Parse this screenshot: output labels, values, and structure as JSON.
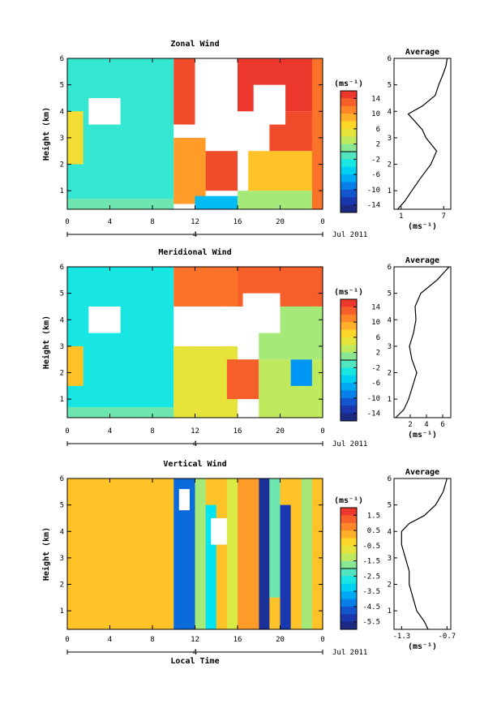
{
  "chart_data": [
    {
      "type": "heatmap",
      "title": "Zonal Wind",
      "ylabel": "Height (km)",
      "xlabel": "",
      "xlim": [
        0,
        24
      ],
      "ylim": [
        0.3,
        6
      ],
      "x_ticks": [
        "0",
        "4",
        "8",
        "12",
        "16",
        "20",
        "0"
      ],
      "y_ticks": [
        "1",
        "2",
        "3",
        "4",
        "5",
        "6"
      ],
      "date_axis": {
        "day": "4",
        "date_label": "Jul 2011"
      },
      "colorbar": {
        "unit": "(ms⁻¹)",
        "ticks": [
          "14",
          "10",
          "6",
          "2",
          "-2",
          "-6",
          "-10",
          "-14"
        ],
        "range": [
          -16,
          16
        ]
      },
      "average_profile": {
        "title": "Average",
        "xlabel": "(ms⁻¹)",
        "x_ticks": [
          "1",
          "7"
        ],
        "xlim": [
          0,
          8
        ],
        "height": [
          0.3,
          0.6,
          1.0,
          1.5,
          2.0,
          2.5,
          3.0,
          3.3,
          3.6,
          3.9,
          4.2,
          4.6,
          5.0,
          5.4,
          5.7,
          6.0
        ],
        "value": [
          0.5,
          1.5,
          2.5,
          3.8,
          5.2,
          6.0,
          4.5,
          4.0,
          3.0,
          2.0,
          4.0,
          5.8,
          6.3,
          6.9,
          7.3,
          7.5
        ]
      },
      "regions": [
        {
          "x": [
            0,
            10
          ],
          "y": [
            0.3,
            6
          ],
          "value": -2
        },
        {
          "x": [
            0,
            1.5
          ],
          "y": [
            2,
            4
          ],
          "value": 6
        },
        {
          "x": [
            0,
            10
          ],
          "y": [
            0.3,
            0.7
          ],
          "value": 0
        },
        {
          "x": [
            10,
            12
          ],
          "y": [
            3.5,
            6
          ],
          "value": 14
        },
        {
          "x": [
            10,
            13
          ],
          "y": [
            0.5,
            3
          ],
          "value": 10
        },
        {
          "x": [
            12,
            16
          ],
          "y": [
            0.3,
            0.8
          ],
          "value": -6
        },
        {
          "x": [
            13,
            16
          ],
          "y": [
            1,
            2.5
          ],
          "value": 14
        },
        {
          "x": [
            16,
            24
          ],
          "y": [
            0.3,
            1
          ],
          "value": 2
        },
        {
          "x": [
            17,
            24
          ],
          "y": [
            1,
            2.5
          ],
          "value": 8
        },
        {
          "x": [
            19,
            24
          ],
          "y": [
            2.5,
            4
          ],
          "value": 14
        },
        {
          "x": [
            16,
            24
          ],
          "y": [
            4,
            6
          ],
          "value": 15
        },
        {
          "x": [
            23,
            24
          ],
          "y": [
            0.3,
            6
          ],
          "value": 12
        }
      ],
      "missing": [
        {
          "x": [
            12,
            15
          ],
          "y": [
            3.3,
            5
          ],
          "value": null
        },
        {
          "x": [
            17.5,
            20.5
          ],
          "y": [
            3.5,
            5
          ],
          "value": null
        },
        {
          "x": [
            2,
            5
          ],
          "y": [
            3.5,
            4.5
          ],
          "value": null
        }
      ]
    },
    {
      "type": "heatmap",
      "title": "Meridional Wind",
      "ylabel": "Height (km)",
      "xlabel": "",
      "xlim": [
        0,
        24
      ],
      "ylim": [
        0.3,
        6
      ],
      "x_ticks": [
        "0",
        "4",
        "8",
        "12",
        "16",
        "20",
        "0"
      ],
      "y_ticks": [
        "1",
        "2",
        "3",
        "4",
        "5",
        "6"
      ],
      "date_axis": {
        "day": "4",
        "date_label": "Jul 2011"
      },
      "colorbar": {
        "unit": "(ms⁻¹)",
        "ticks": [
          "14",
          "10",
          "6",
          "2",
          "-2",
          "-6",
          "-10",
          "-14"
        ],
        "range": [
          -16,
          16
        ]
      },
      "average_profile": {
        "title": "Average",
        "xlabel": "(ms⁻¹)",
        "x_ticks": [
          "2",
          "4",
          "6"
        ],
        "xlim": [
          0,
          7
        ],
        "height": [
          0.3,
          0.6,
          1.0,
          1.5,
          2.0,
          2.5,
          3.0,
          3.5,
          4.0,
          4.5,
          5.0,
          5.5,
          6.0
        ],
        "value": [
          0.2,
          1.2,
          1.8,
          2.3,
          2.8,
          2.2,
          1.9,
          2.4,
          2.7,
          2.6,
          3.3,
          5.3,
          6.8
        ]
      },
      "regions": [
        {
          "x": [
            0,
            10
          ],
          "y": [
            0.3,
            6
          ],
          "value": -3
        },
        {
          "x": [
            0,
            1.5
          ],
          "y": [
            1.5,
            3
          ],
          "value": 8
        },
        {
          "x": [
            0,
            10
          ],
          "y": [
            0.3,
            0.7
          ],
          "value": 0
        },
        {
          "x": [
            10,
            16
          ],
          "y": [
            0.3,
            3
          ],
          "value": 5
        },
        {
          "x": [
            15,
            18
          ],
          "y": [
            1,
            2.5
          ],
          "value": 13
        },
        {
          "x": [
            18,
            24
          ],
          "y": [
            0.3,
            2.5
          ],
          "value": 3
        },
        {
          "x": [
            21,
            23
          ],
          "y": [
            1.5,
            2.5
          ],
          "value": -8
        },
        {
          "x": [
            10,
            16
          ],
          "y": [
            4.5,
            6
          ],
          "value": 12
        },
        {
          "x": [
            16,
            24
          ],
          "y": [
            4.5,
            6
          ],
          "value": 13
        },
        {
          "x": [
            18,
            24
          ],
          "y": [
            2.5,
            4.5
          ],
          "value": 2
        }
      ],
      "missing": [
        {
          "x": [
            11,
            15
          ],
          "y": [
            3,
            4.5
          ],
          "value": null
        },
        {
          "x": [
            16.5,
            20
          ],
          "y": [
            3.5,
            5
          ],
          "value": null
        },
        {
          "x": [
            2,
            5
          ],
          "y": [
            3.5,
            4.5
          ],
          "value": null
        }
      ]
    },
    {
      "type": "heatmap",
      "title": "Vertical Wind",
      "ylabel": "Height (km)",
      "xlabel": "Local Time",
      "xlim": [
        0,
        24
      ],
      "ylim": [
        0.3,
        6
      ],
      "x_ticks": [
        "0",
        "4",
        "8",
        "12",
        "16",
        "20",
        "0"
      ],
      "y_ticks": [
        "1",
        "2",
        "3",
        "4",
        "5",
        "6"
      ],
      "date_axis": {
        "day": "4",
        "date_label": "Jul 2011"
      },
      "colorbar": {
        "unit": "(ms⁻¹)",
        "ticks": [
          "1.5",
          "0.5",
          "-0.5",
          "-1.5",
          "-2.5",
          "-3.5",
          "-4.5",
          "-5.5"
        ],
        "range": [
          -6,
          2
        ]
      },
      "average_profile": {
        "title": "Average",
        "xlabel": "(ms⁻¹)",
        "x_ticks": [
          "-1.3",
          "-0.7"
        ],
        "xlim": [
          -1.4,
          -0.65
        ],
        "height": [
          0.3,
          0.6,
          1.0,
          1.5,
          2.0,
          2.5,
          3.0,
          3.5,
          4.0,
          4.3,
          4.6,
          5.0,
          5.5,
          6.0
        ],
        "value": [
          -0.95,
          -1.0,
          -1.1,
          -1.15,
          -1.2,
          -1.2,
          -1.25,
          -1.3,
          -1.3,
          -1.2,
          -1.0,
          -0.85,
          -0.75,
          -0.7
        ]
      },
      "regions": [
        {
          "x": [
            0,
            24
          ],
          "y": [
            0.3,
            6
          ],
          "value": 0
        },
        {
          "x": [
            10,
            12
          ],
          "y": [
            0.3,
            6
          ],
          "value": -4.5
        },
        {
          "x": [
            12,
            13
          ],
          "y": [
            0.3,
            6
          ],
          "value": -1.5
        },
        {
          "x": [
            13,
            14
          ],
          "y": [
            0.3,
            5
          ],
          "value": -3
        },
        {
          "x": [
            15,
            16
          ],
          "y": [
            0.3,
            6
          ],
          "value": -1
        },
        {
          "x": [
            18,
            19
          ],
          "y": [
            0.3,
            6
          ],
          "value": -5.5
        },
        {
          "x": [
            19,
            20
          ],
          "y": [
            1.5,
            6
          ],
          "value": -2
        },
        {
          "x": [
            20,
            21
          ],
          "y": [
            0.3,
            5
          ],
          "value": -5.2
        },
        {
          "x": [
            22,
            23
          ],
          "y": [
            0.3,
            6
          ],
          "value": -1.5
        },
        {
          "x": [
            16,
            18
          ],
          "y": [
            0.3,
            6
          ],
          "value": 0.5
        }
      ],
      "missing": [
        {
          "x": [
            10.5,
            11.5
          ],
          "y": [
            4.8,
            5.6
          ],
          "value": null
        },
        {
          "x": [
            13.5,
            15
          ],
          "y": [
            3.5,
            4.5
          ],
          "value": null
        }
      ]
    }
  ]
}
